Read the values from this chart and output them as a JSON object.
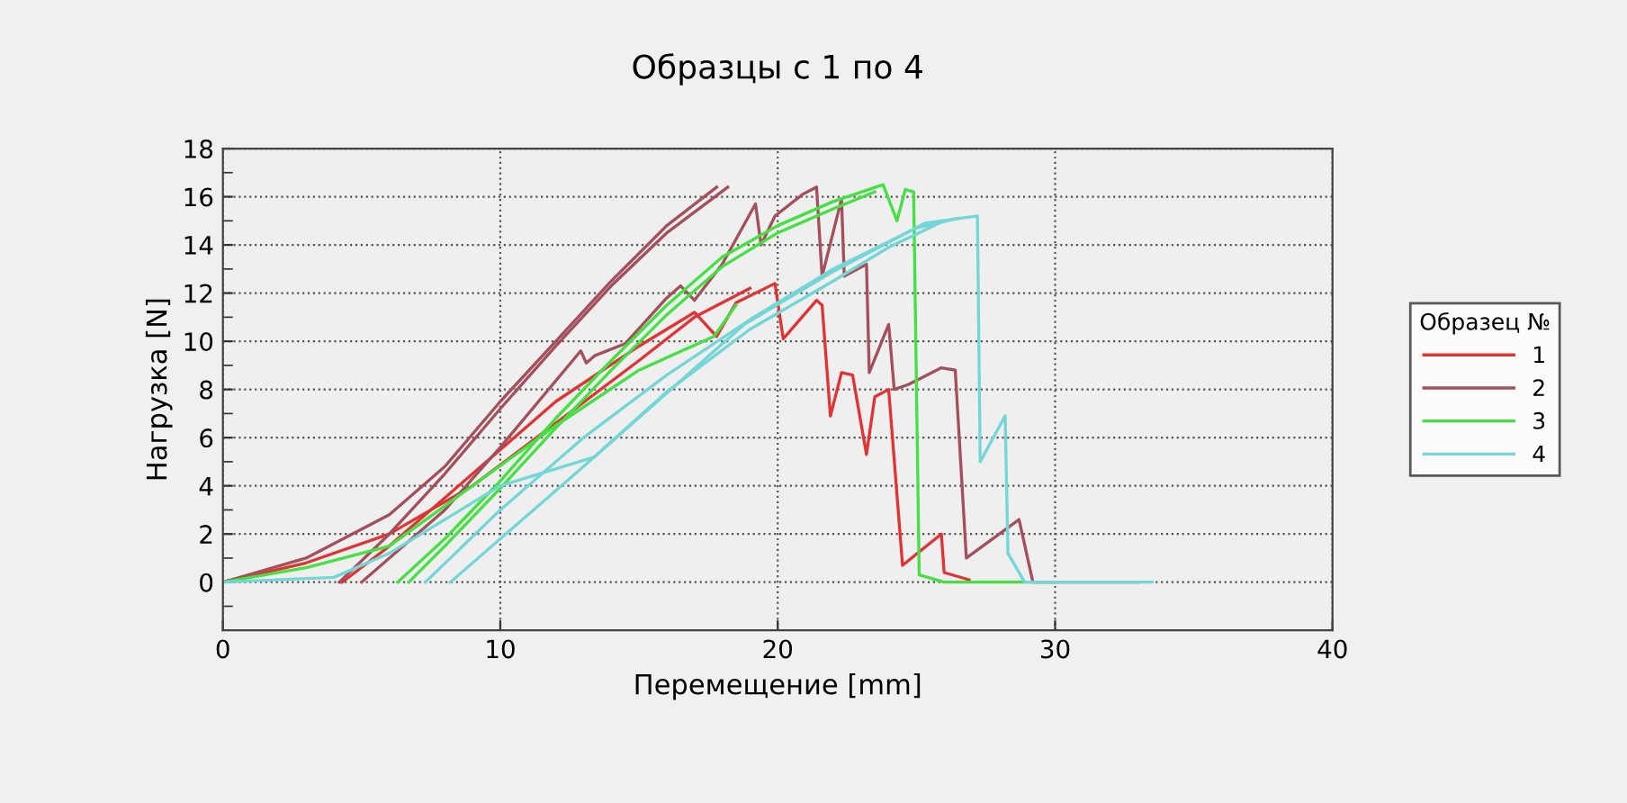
{
  "chart_data": {
    "type": "line",
    "title": "Образцы с 1 по 4",
    "xlabel": "Перемещение [mm]",
    "ylabel": "Нагрузка [N]",
    "legend_title": "Образец №",
    "legend": "right",
    "grid": true,
    "xlim": [
      0,
      40
    ],
    "xticks": [
      0,
      10,
      20,
      30,
      40
    ],
    "ylim": [
      -2,
      18
    ],
    "yticks": [
      {
        "value": -1,
        "label": null
      },
      0,
      {
        "value": 1,
        "label": null
      },
      2,
      {
        "value": 3,
        "label": null
      },
      4,
      {
        "value": 5,
        "label": null
      },
      6,
      {
        "value": 7,
        "label": null
      },
      8,
      {
        "value": 9,
        "label": null
      },
      10,
      {
        "value": 11,
        "label": null
      },
      12,
      {
        "value": 13,
        "label": null
      },
      14,
      {
        "value": 15,
        "label": null
      },
      16,
      {
        "value": 17,
        "label": null
      },
      18
    ],
    "series": [
      {
        "name": "1",
        "color": "#e03434",
        "x": [
          0,
          3,
          6,
          9,
          12,
          15,
          17,
          19
        ],
        "values": [
          0,
          0.8,
          2,
          4,
          6.6,
          9.2,
          11,
          12.2
        ]
      },
      {
        "color": "#e03434",
        "x": [
          4.3,
          6,
          9,
          12,
          15,
          17,
          17.8,
          18.5,
          19.9,
          20.2,
          21.4,
          21.6,
          21.9,
          22.3,
          22.7,
          23.2,
          23.5,
          24,
          24.5,
          25.9,
          26,
          26.9
        ],
        "values": [
          0,
          1.5,
          4.5,
          7.5,
          9.8,
          11.2,
          10.2,
          11.6,
          12.4,
          10.1,
          11.7,
          11.5,
          6.9,
          8.7,
          8.6,
          5.3,
          7.7,
          8,
          0.7,
          2,
          0.4,
          0.1
        ]
      },
      {
        "name": "2",
        "color": "#a4505c",
        "x": [
          0,
          3,
          6,
          8,
          10,
          12,
          14,
          16,
          17.8
        ],
        "values": [
          0,
          1,
          2.8,
          4.8,
          7.5,
          10,
          12.5,
          14.8,
          16.4
        ]
      },
      {
        "color": "#a4505c",
        "x": [
          4.2,
          6,
          8,
          10,
          12,
          14,
          16,
          18.2
        ],
        "values": [
          0,
          2,
          4.5,
          7.2,
          9.8,
          12.3,
          14.5,
          16.4
        ]
      },
      {
        "color": "#a4505c",
        "x": [
          5,
          8,
          10,
          12.9,
          13.1,
          13.4,
          14.5,
          16,
          16.5,
          17,
          18,
          19.2,
          19.4,
          19.9,
          20.9,
          21.4,
          21.6,
          22.3,
          22.4,
          23.2,
          23.3,
          24,
          24.2,
          24.7,
          25.9,
          26.4,
          26.8,
          28.7,
          29.2,
          33
        ],
        "values": [
          0,
          3,
          5.6,
          9.6,
          9.1,
          9.4,
          9.9,
          11.8,
          12.3,
          11.7,
          13.2,
          15.7,
          14,
          15.2,
          16.1,
          16.4,
          12.7,
          15.9,
          12.7,
          13.2,
          8.7,
          10.7,
          8,
          8.2,
          8.9,
          8.8,
          1,
          2.6,
          0,
          0
        ]
      },
      {
        "name": "3",
        "color": "#44e044",
        "x": [
          6.3,
          8,
          10,
          12,
          14,
          16,
          18,
          20,
          22,
          23.8,
          24.3,
          24.6,
          24.9,
          25.1,
          26,
          30
        ],
        "values": [
          0,
          1.8,
          4.2,
          6.8,
          9.2,
          11.5,
          13.5,
          14.8,
          15.8,
          16.5,
          15,
          16.3,
          16.2,
          0.3,
          0,
          0
        ]
      },
      {
        "color": "#44e044",
        "x": [
          6.7,
          8,
          10,
          12,
          14,
          16,
          18,
          20,
          22,
          23.5
        ],
        "values": [
          0,
          1.5,
          3.9,
          6.4,
          8.8,
          11.1,
          13.1,
          14.5,
          15.5,
          16.2
        ]
      },
      {
        "color": "#44e044",
        "x": [
          0,
          3,
          6,
          9,
          12,
          15,
          17.7,
          18.5
        ],
        "values": [
          0,
          0.6,
          1.5,
          4,
          6.5,
          8.8,
          10.2,
          11.5
        ]
      },
      {
        "name": "4",
        "color": "#74d6d6",
        "x": [
          0,
          4,
          6,
          8,
          10,
          13.4,
          18.8,
          22,
          25.3,
          27.2,
          27.3,
          28.2,
          28.3,
          28.9,
          33.5
        ],
        "values": [
          0,
          0.2,
          1.2,
          2.6,
          4,
          5.2,
          10.7,
          12.9,
          14.9,
          15.2,
          5,
          6.9,
          1.2,
          0,
          0
        ]
      },
      {
        "color": "#74d6d6",
        "x": [
          7.3,
          10,
          13,
          16,
          19,
          22,
          25,
          26.5
        ],
        "values": [
          0,
          3,
          6,
          8.6,
          10.9,
          13,
          14.7,
          15.1
        ]
      },
      {
        "color": "#74d6d6",
        "x": [
          8.2,
          10,
          13,
          16,
          19,
          22,
          24,
          26
        ],
        "values": [
          0,
          1.8,
          4.8,
          7.9,
          10.5,
          12.5,
          13.9,
          15
        ]
      }
    ]
  }
}
